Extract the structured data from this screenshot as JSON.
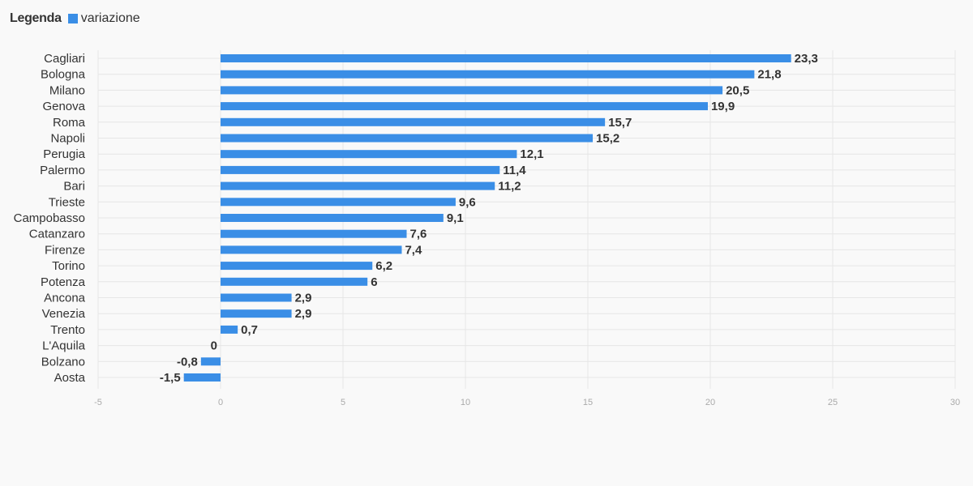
{
  "legend": {
    "title": "Legenda",
    "series_label": "variazione"
  },
  "colors": {
    "bar": "#3a8ee6",
    "grid": "#e6e6e6",
    "background": "#f9f9f9"
  },
  "chart_data": {
    "type": "bar",
    "orientation": "horizontal",
    "categories": [
      "Cagliari",
      "Bologna",
      "Milano",
      "Genova",
      "Roma",
      "Napoli",
      "Perugia",
      "Palermo",
      "Bari",
      "Trieste",
      "Campobasso",
      "Catanzaro",
      "Firenze",
      "Torino",
      "Potenza",
      "Ancona",
      "Venezia",
      "Trento",
      "L'Aquila",
      "Bolzano",
      "Aosta"
    ],
    "series": [
      {
        "name": "variazione",
        "values": [
          23.3,
          21.8,
          20.5,
          19.9,
          15.7,
          15.2,
          12.1,
          11.4,
          11.2,
          9.6,
          9.1,
          7.6,
          7.4,
          6.2,
          6,
          2.9,
          2.9,
          0.7,
          0,
          -0.8,
          -1.5
        ],
        "value_labels": [
          "23,3",
          "21,8",
          "20,5",
          "19,9",
          "15,7",
          "15,2",
          "12,1",
          "11,4",
          "11,2",
          "9,6",
          "9,1",
          "7,6",
          "7,4",
          "6,2",
          "6",
          "2,9",
          "2,9",
          "0,7",
          "0",
          "-0,8",
          "-1,5"
        ]
      }
    ],
    "xlim": [
      -5,
      30
    ],
    "ticks": [
      -5,
      0,
      5,
      10,
      15,
      20,
      25,
      30
    ],
    "grid": true,
    "legend_position": "top-left"
  }
}
